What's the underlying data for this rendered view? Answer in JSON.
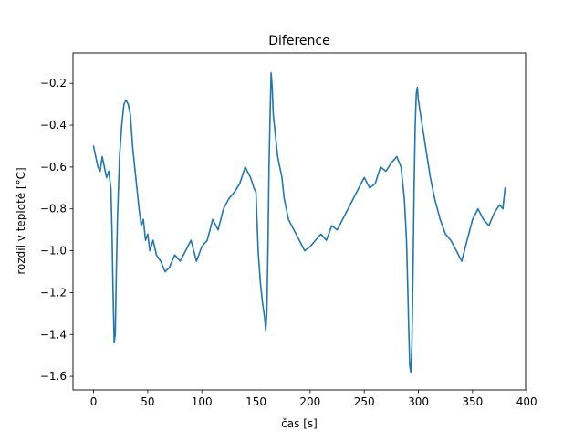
{
  "chart_data": {
    "type": "line",
    "title": "Diference",
    "xlabel": "čas [s]",
    "ylabel": "rozdíl v teplotě [°C]",
    "xlim": [
      -19,
      399
    ],
    "ylim": [
      -1.665,
      -0.055
    ],
    "x_ticks": [
      0,
      50,
      100,
      150,
      200,
      250,
      300,
      350,
      400
    ],
    "x_tick_labels": [
      "0",
      "50",
      "100",
      "150",
      "200",
      "250",
      "300",
      "350",
      "400"
    ],
    "y_ticks": [
      -0.2,
      -0.4,
      -0.6,
      -0.8,
      -1.0,
      -1.2,
      -1.4,
      -1.6
    ],
    "y_tick_labels": [
      "−0.2",
      "−0.4",
      "−0.6",
      "−0.8",
      "−1.0",
      "−1.2",
      "−1.4",
      "−1.6"
    ],
    "grid": false,
    "legend": null,
    "colors": {
      "line": "#1f77b4"
    },
    "series": [
      {
        "x": [
          0,
          2,
          4,
          6,
          8,
          10,
          12,
          14,
          16,
          17,
          18,
          19,
          20,
          21,
          22,
          24,
          26,
          28,
          30,
          32,
          34,
          36,
          38,
          40,
          42,
          44,
          46,
          48,
          50,
          52,
          55,
          58,
          62,
          66,
          70,
          75,
          80,
          85,
          90,
          95,
          100,
          105,
          110,
          115,
          120,
          125,
          130,
          135,
          140,
          145,
          148,
          150,
          152,
          154,
          156,
          158,
          159,
          160,
          161,
          162,
          163,
          164,
          165,
          166,
          168,
          170,
          172,
          174,
          176,
          178,
          180,
          185,
          190,
          195,
          200,
          205,
          210,
          215,
          220,
          225,
          230,
          235,
          240,
          245,
          250,
          255,
          260,
          265,
          270,
          275,
          280,
          284,
          287,
          289,
          290,
          291,
          292,
          293,
          294,
          295,
          296,
          297,
          298,
          299,
          300,
          302,
          305,
          308,
          311,
          315,
          320,
          325,
          330,
          335,
          340,
          345,
          350,
          355,
          360,
          365,
          370,
          375,
          378,
          380
        ],
        "y": [
          -0.5,
          -0.55,
          -0.6,
          -0.62,
          -0.55,
          -0.6,
          -0.65,
          -0.62,
          -0.7,
          -0.9,
          -1.2,
          -1.44,
          -1.4,
          -1.1,
          -0.85,
          -0.55,
          -0.4,
          -0.3,
          -0.28,
          -0.3,
          -0.35,
          -0.5,
          -0.6,
          -0.7,
          -0.8,
          -0.88,
          -0.85,
          -0.95,
          -0.92,
          -1.0,
          -0.95,
          -1.02,
          -1.05,
          -1.1,
          -1.08,
          -1.02,
          -1.05,
          -1.0,
          -0.95,
          -1.05,
          -0.98,
          -0.95,
          -0.85,
          -0.9,
          -0.8,
          -0.75,
          -0.72,
          -0.68,
          -0.6,
          -0.65,
          -0.7,
          -0.72,
          -1.0,
          -1.15,
          -1.25,
          -1.32,
          -1.38,
          -1.3,
          -1.0,
          -0.6,
          -0.35,
          -0.15,
          -0.22,
          -0.35,
          -0.45,
          -0.55,
          -0.6,
          -0.65,
          -0.75,
          -0.8,
          -0.85,
          -0.9,
          -0.95,
          -1.0,
          -0.98,
          -0.95,
          -0.92,
          -0.95,
          -0.88,
          -0.9,
          -0.85,
          -0.8,
          -0.75,
          -0.7,
          -0.65,
          -0.7,
          -0.68,
          -0.6,
          -0.62,
          -0.58,
          -0.55,
          -0.6,
          -0.75,
          -0.95,
          -1.15,
          -1.35,
          -1.55,
          -1.58,
          -1.45,
          -1.1,
          -0.7,
          -0.4,
          -0.25,
          -0.22,
          -0.28,
          -0.35,
          -0.45,
          -0.55,
          -0.65,
          -0.75,
          -0.85,
          -0.92,
          -0.95,
          -1.0,
          -1.05,
          -0.95,
          -0.85,
          -0.8,
          -0.85,
          -0.88,
          -0.82,
          -0.78,
          -0.8,
          -0.7
        ]
      }
    ]
  }
}
